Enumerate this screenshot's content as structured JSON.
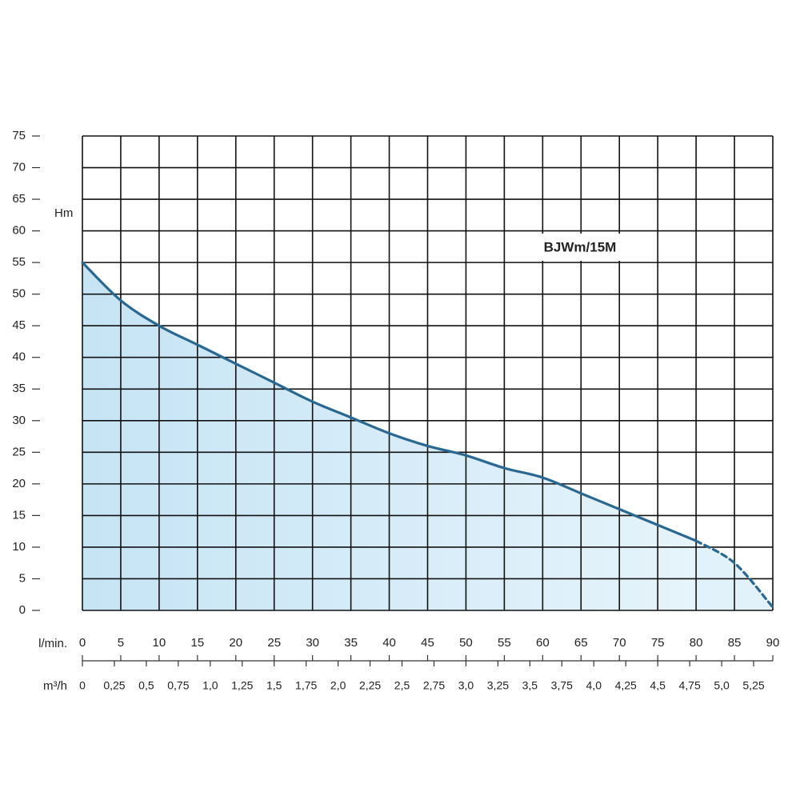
{
  "chart_data": {
    "type": "line",
    "annotation": "BJWm/15M",
    "ylabel": "Hm",
    "xlabel": "l/min.",
    "x2label": "m³/h",
    "xlim": [
      0,
      90
    ],
    "xticks": [
      0,
      5,
      10,
      15,
      20,
      25,
      30,
      35,
      40,
      45,
      50,
      55,
      60,
      65,
      70,
      75,
      80,
      85,
      90
    ],
    "ylim": [
      0,
      75
    ],
    "yticks": [
      0,
      5,
      10,
      15,
      20,
      25,
      30,
      35,
      40,
      45,
      50,
      55,
      60,
      65,
      70,
      75
    ],
    "x2lim": [
      0,
      5.4
    ],
    "x2ticks": [
      0,
      {
        "value": 0.25,
        "label": "0,25"
      },
      {
        "value": 0.5,
        "label": "0,5"
      },
      {
        "value": 0.75,
        "label": "0,75"
      },
      {
        "value": 1,
        "label": "1,0"
      },
      {
        "value": 1.25,
        "label": "1,25"
      },
      {
        "value": 1.5,
        "label": "1,5"
      },
      {
        "value": 1.75,
        "label": "1,75"
      },
      {
        "value": 2,
        "label": "2,0"
      },
      {
        "value": 2.25,
        "label": "2,25"
      },
      {
        "value": 2.5,
        "label": "2,5"
      },
      {
        "value": 2.75,
        "label": "2,75"
      },
      {
        "value": 3,
        "label": "3,0"
      },
      {
        "value": 3.25,
        "label": "3,25"
      },
      {
        "value": 3.5,
        "label": "3,5"
      },
      {
        "value": 3.75,
        "label": "3,75"
      },
      {
        "value": 4,
        "label": "4,0"
      },
      {
        "value": 4.25,
        "label": "4,25"
      },
      {
        "value": 4.5,
        "label": "4,5"
      },
      {
        "value": 4.75,
        "label": "4,75"
      },
      {
        "value": 5,
        "label": "5,0"
      },
      {
        "value": 5.25,
        "label": "5,25"
      }
    ],
    "grid": true,
    "fill": "#cfe9f7",
    "series": [
      {
        "color": "#2a6791",
        "style": "solid",
        "x": [
          0,
          5,
          10,
          15,
          20,
          25,
          30,
          35,
          40,
          45,
          50,
          55,
          60,
          65,
          70,
          75,
          80
        ],
        "values": [
          55,
          49,
          45,
          42,
          39,
          36,
          33,
          30.5,
          28,
          26,
          24.5,
          22.5,
          21,
          18.5,
          16,
          13.5,
          11
        ]
      },
      {
        "color": "#2a6791",
        "style": "dashed",
        "x": [
          80,
          85,
          90
        ],
        "values": [
          11,
          7.5,
          0.5
        ]
      }
    ]
  }
}
